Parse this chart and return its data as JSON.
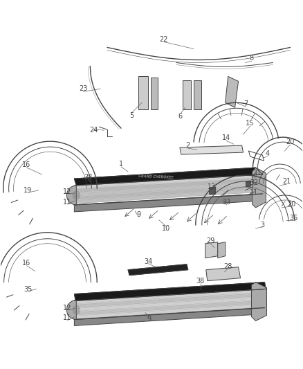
{
  "background_color": "#ffffff",
  "line_color": "#444444",
  "label_color": "#444444",
  "label_fontsize": 7.0,
  "fig_w": 4.38,
  "fig_h": 5.33
}
